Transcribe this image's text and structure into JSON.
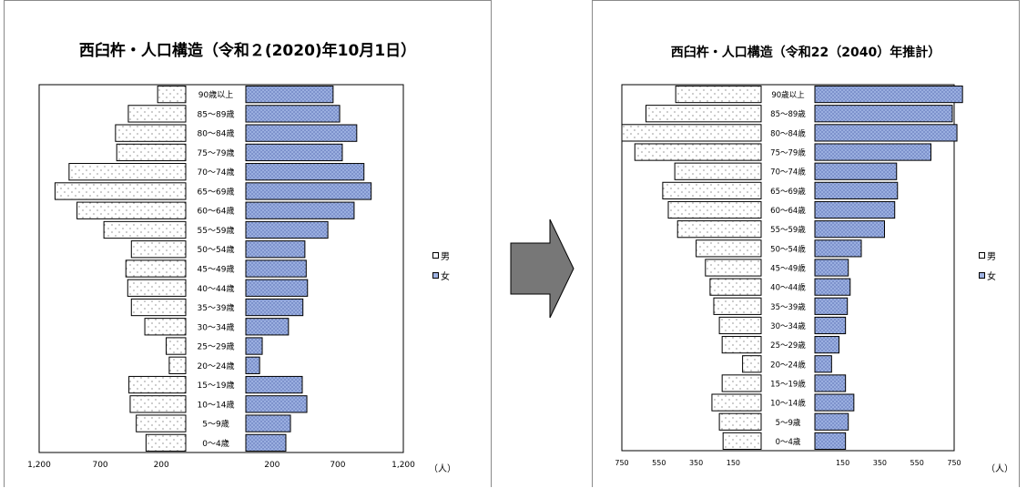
{
  "left": {
    "title": "西臼杵・人口構造（令和２(2020)年10月1日）",
    "legend_male": "男",
    "legend_female": "女",
    "unit": "（人）"
  },
  "right": {
    "title": "西臼杵・人口構造（令和22（2040）年推計）",
    "legend_male": "男",
    "legend_female": "女",
    "unit": "（人）"
  },
  "colors": {
    "male_fill": "#ffffff",
    "female_fill": "#9fb3e3",
    "arrow": "#777777"
  },
  "chart_data": [
    {
      "type": "bar",
      "orientation": "horizontal-pyramid",
      "title": "西臼杵・人口構造（令和２(2020)年10月1日）",
      "categories": [
        "90歳以上",
        "85～89歳",
        "80～84歳",
        "75～79歳",
        "70～74歳",
        "65～69歳",
        "60～64歳",
        "55～59歳",
        "50～54歳",
        "45～49歳",
        "40～44歳",
        "35～39歳",
        "30～34歳",
        "25～29歳",
        "20～24歳",
        "15～19歳",
        "10～14歳",
        "5～9歳",
        "0～4歳"
      ],
      "series": [
        {
          "name": "男",
          "side": "left",
          "values": [
            230,
            470,
            575,
            565,
            955,
            1070,
            890,
            670,
            445,
            490,
            475,
            445,
            335,
            160,
            135,
            465,
            455,
            405,
            325
          ]
        },
        {
          "name": "女",
          "side": "right",
          "values": [
            665,
            715,
            845,
            735,
            900,
            955,
            825,
            625,
            450,
            460,
            470,
            435,
            325,
            125,
            105,
            430,
            465,
            340,
            305
          ]
        }
      ],
      "ylim": [
        0,
        1200
      ],
      "ticks": [
        "1,200",
        "700",
        "200",
        "200",
        "700",
        "1,200"
      ],
      "tick_values": [
        -1200,
        -700,
        -200,
        200,
        700,
        1200
      ],
      "legend": "right"
    },
    {
      "type": "bar",
      "orientation": "horizontal-pyramid",
      "title": "西臼杵・人口構造（令和22（2040）年推計）",
      "categories": [
        "90歳以上",
        "85～89歳",
        "80～84歳",
        "75～79歳",
        "70～74歳",
        "65～69歳",
        "60～64歳",
        "55～59歳",
        "50～54歳",
        "45～49歳",
        "40～44歳",
        "35～39歳",
        "30～34歳",
        "25～29歳",
        "20～24歳",
        "15～19歳",
        "10～14歳",
        "5～9歳",
        "0～4歳"
      ],
      "series": [
        {
          "name": "男",
          "side": "left",
          "values": [
            460,
            620,
            750,
            680,
            465,
            530,
            500,
            450,
            350,
            300,
            275,
            255,
            225,
            210,
            100,
            210,
            265,
            225,
            205
          ]
        },
        {
          "name": "女",
          "side": "right",
          "values": [
            795,
            740,
            765,
            625,
            440,
            445,
            430,
            375,
            250,
            180,
            190,
            175,
            165,
            130,
            90,
            165,
            210,
            180,
            165
          ]
        }
      ],
      "ylim": [
        0,
        750
      ],
      "ticks": [
        "750",
        "550",
        "350",
        "150",
        "150",
        "350",
        "550",
        "750"
      ],
      "tick_values": [
        -750,
        -550,
        -350,
        -150,
        150,
        350,
        550,
        750
      ],
      "legend": "right"
    }
  ]
}
